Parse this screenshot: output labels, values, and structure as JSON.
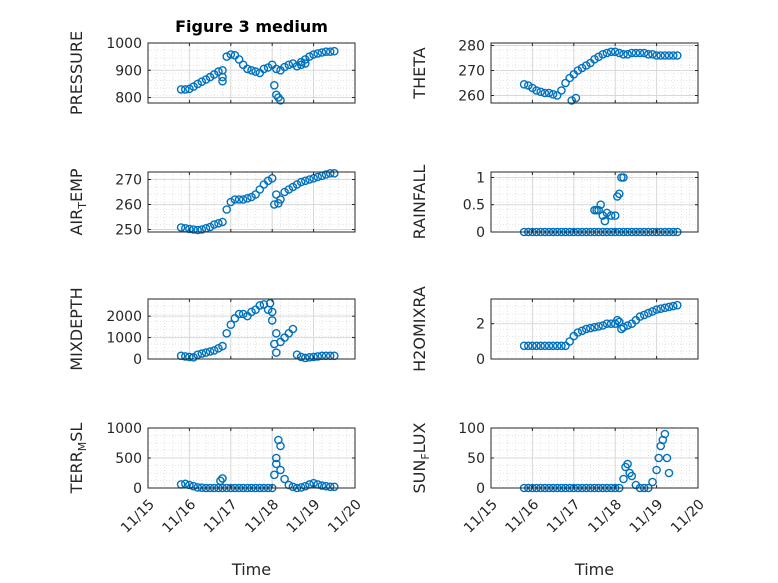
{
  "figure": {
    "title": "Figure 3 medium",
    "marker_color": "#0072BD",
    "grid": true,
    "minor_grid": true
  },
  "chart_data": [
    {
      "type": "scatter",
      "title": "Figure 3 medium",
      "ylabel": "PRESSURE",
      "xlim": [
        0,
        5
      ],
      "ylim": [
        780,
        1000
      ],
      "yticks": [
        800,
        900,
        1000
      ],
      "ytick_labels": [
        "800",
        "900",
        "1000"
      ],
      "show_xticklabels": false,
      "x": [
        0.8,
        0.9,
        1.0,
        1.1,
        1.2,
        1.3,
        1.4,
        1.5,
        1.6,
        1.7,
        1.8,
        1.9,
        2.0,
        2.1,
        2.2,
        2.3,
        2.4,
        2.5,
        2.6,
        2.7,
        2.8,
        2.9,
        3.0,
        3.1,
        3.2,
        3.3,
        3.4,
        3.5,
        3.6,
        3.7,
        3.8,
        3.9,
        4.0,
        4.1,
        4.2,
        4.3,
        4.4,
        4.5,
        1.8,
        1.8,
        3.05,
        3.1,
        3.15,
        3.2,
        3.7,
        3.8
      ],
      "y": [
        830,
        830,
        832,
        840,
        850,
        858,
        866,
        875,
        885,
        895,
        900,
        950,
        958,
        955,
        940,
        920,
        905,
        900,
        895,
        890,
        905,
        910,
        920,
        905,
        900,
        912,
        920,
        925,
        915,
        930,
        940,
        950,
        958,
        962,
        965,
        968,
        968,
        970,
        860,
        875,
        845,
        810,
        800,
        790,
        920,
        925
      ]
    },
    {
      "type": "scatter",
      "ylabel": "THETA",
      "xlim": [
        0,
        5
      ],
      "ylim": [
        257,
        281
      ],
      "yticks": [
        260,
        270,
        280
      ],
      "ytick_labels": [
        "260",
        "270",
        "280"
      ],
      "show_xticklabels": false,
      "x": [
        0.8,
        0.9,
        1.0,
        1.1,
        1.2,
        1.3,
        1.4,
        1.5,
        1.6,
        1.7,
        1.8,
        1.9,
        2.0,
        2.1,
        2.2,
        2.3,
        2.4,
        2.5,
        2.6,
        2.7,
        2.8,
        2.9,
        3.0,
        3.1,
        3.2,
        3.3,
        3.4,
        3.5,
        3.6,
        3.7,
        3.8,
        3.9,
        4.0,
        4.1,
        4.2,
        4.3,
        4.4,
        4.5,
        1.95,
        2.05
      ],
      "y": [
        264.5,
        264,
        263,
        262,
        261.5,
        261,
        261,
        260.5,
        260,
        262,
        265,
        267,
        268.5,
        270,
        271,
        272,
        273,
        274.5,
        275.5,
        276.5,
        277,
        277.5,
        277.5,
        277,
        276.5,
        276.5,
        277,
        277,
        277,
        277,
        276.5,
        276.5,
        276,
        276,
        276,
        276,
        276,
        276,
        258,
        259
      ]
    },
    {
      "type": "scatter",
      "ylabel": "AIR_TEMP",
      "ylabel_main": "AIR",
      "ylabel_sub": "T",
      "ylabel_rest": "EMP",
      "xlim": [
        0,
        5
      ],
      "ylim": [
        249,
        273
      ],
      "yticks": [
        250,
        260,
        270
      ],
      "ytick_labels": [
        "250",
        "260",
        "270"
      ],
      "show_xticklabels": false,
      "x": [
        0.8,
        0.9,
        1.0,
        1.1,
        1.2,
        1.3,
        1.4,
        1.5,
        1.6,
        1.7,
        1.8,
        1.9,
        2.0,
        2.1,
        2.2,
        2.3,
        2.4,
        2.5,
        2.6,
        2.7,
        2.8,
        2.9,
        3.0,
        3.1,
        3.2,
        3.3,
        3.4,
        3.5,
        3.6,
        3.7,
        3.8,
        3.9,
        4.0,
        4.1,
        4.2,
        4.3,
        4.4,
        4.5,
        3.05,
        3.15
      ],
      "y": [
        250.8,
        250.5,
        250.2,
        250,
        249.8,
        250,
        250.5,
        251,
        252,
        252.5,
        253,
        258,
        261,
        262,
        262,
        262,
        262.5,
        263,
        264,
        266,
        268,
        269.5,
        270.5,
        264,
        262,
        265,
        266,
        267,
        268,
        269,
        269.5,
        270,
        270.5,
        271,
        271.5,
        272,
        272.5,
        272.5,
        260,
        260.5
      ]
    },
    {
      "type": "scatter",
      "ylabel": "RAINFALL",
      "xlim": [
        0,
        5
      ],
      "ylim": [
        0,
        1.1
      ],
      "yticks": [
        0,
        0.5,
        1
      ],
      "ytick_labels": [
        "0",
        "0.5",
        "1"
      ],
      "show_xticklabels": false,
      "x": [
        0.8,
        0.9,
        1.0,
        1.1,
        1.2,
        1.3,
        1.4,
        1.5,
        1.6,
        1.7,
        1.8,
        1.9,
        2.0,
        2.1,
        2.2,
        2.3,
        2.4,
        2.5,
        2.6,
        2.7,
        2.8,
        2.9,
        3.0,
        3.1,
        3.2,
        3.3,
        3.4,
        3.5,
        3.6,
        3.7,
        3.8,
        3.9,
        4.0,
        4.1,
        4.2,
        4.3,
        4.4,
        4.5,
        2.5,
        2.55,
        2.6,
        2.65,
        2.7,
        2.75,
        2.8,
        2.9,
        3.0,
        3.05,
        3.1,
        3.15,
        3.2
      ],
      "y": [
        0,
        0,
        0,
        0,
        0,
        0,
        0,
        0,
        0,
        0,
        0,
        0,
        0,
        0,
        0,
        0,
        0,
        0,
        0,
        0,
        0,
        0,
        0,
        0,
        0,
        0,
        0,
        0,
        0,
        0,
        0,
        0,
        0,
        0,
        0,
        0,
        0,
        0,
        0.4,
        0.4,
        0.4,
        0.5,
        0.3,
        0.2,
        0.35,
        0.3,
        0.3,
        0.65,
        0.7,
        1.0,
        1.0
      ]
    },
    {
      "type": "scatter",
      "ylabel": "MIXDEPTH",
      "xlim": [
        0,
        5
      ],
      "ylim": [
        0,
        2800
      ],
      "yticks": [
        0,
        1000,
        2000
      ],
      "ytick_labels": [
        "0",
        "1000",
        "2000"
      ],
      "show_xticklabels": false,
      "x": [
        0.8,
        0.9,
        1.0,
        1.1,
        1.2,
        1.3,
        1.4,
        1.5,
        1.6,
        1.7,
        1.8,
        1.9,
        2.0,
        2.1,
        2.2,
        2.3,
        2.4,
        2.5,
        2.6,
        2.7,
        2.8,
        2.9,
        3.0,
        3.1,
        3.2,
        3.3,
        3.4,
        3.5,
        3.6,
        3.7,
        3.8,
        3.9,
        4.0,
        4.1,
        4.2,
        4.3,
        4.4,
        4.5,
        2.95,
        3.0,
        3.05,
        3.1
      ],
      "y": [
        150,
        120,
        100,
        80,
        200,
        250,
        300,
        350,
        400,
        500,
        600,
        1200,
        1600,
        1900,
        2100,
        2100,
        2000,
        2200,
        2300,
        2500,
        2550,
        2300,
        1800,
        1200,
        800,
        1000,
        1200,
        1400,
        200,
        100,
        50,
        80,
        100,
        120,
        150,
        150,
        150,
        150,
        2600,
        2200,
        700,
        300
      ]
    },
    {
      "type": "scatter",
      "ylabel": "H2OMIXRA",
      "xlim": [
        0,
        5
      ],
      "ylim": [
        0,
        3.4
      ],
      "yticks": [
        0,
        2
      ],
      "ytick_labels": [
        "0",
        "2"
      ],
      "show_xticklabels": false,
      "x": [
        0.8,
        0.9,
        1.0,
        1.1,
        1.2,
        1.3,
        1.4,
        1.5,
        1.6,
        1.7,
        1.8,
        1.9,
        2.0,
        2.1,
        2.2,
        2.3,
        2.4,
        2.5,
        2.6,
        2.7,
        2.8,
        2.9,
        3.0,
        3.1,
        3.2,
        3.3,
        3.4,
        3.5,
        3.6,
        3.7,
        3.8,
        3.9,
        4.0,
        4.1,
        4.2,
        4.3,
        4.4,
        4.5,
        3.05,
        3.15
      ],
      "y": [
        0.75,
        0.75,
        0.75,
        0.75,
        0.75,
        0.75,
        0.75,
        0.75,
        0.75,
        0.75,
        0.75,
        1.0,
        1.3,
        1.5,
        1.6,
        1.7,
        1.75,
        1.8,
        1.85,
        1.9,
        2.0,
        2.0,
        2.0,
        2.1,
        1.8,
        1.9,
        2.0,
        2.2,
        2.4,
        2.5,
        2.6,
        2.7,
        2.8,
        2.85,
        2.9,
        2.95,
        3.0,
        3.05,
        2.2,
        1.7
      ]
    },
    {
      "type": "scatter",
      "ylabel": "TERR_MSL",
      "ylabel_main": "TERR",
      "ylabel_sub": "M",
      "ylabel_rest": "SL",
      "xlim": [
        0,
        5
      ],
      "ylim": [
        0,
        1000
      ],
      "yticks": [
        0,
        500,
        1000
      ],
      "ytick_labels": [
        "0",
        "500",
        "1000"
      ],
      "xticks": [
        0,
        1,
        2,
        3,
        4,
        5
      ],
      "xtick_labels": [
        "11/15",
        "11/16",
        "11/17",
        "11/18",
        "11/19",
        "11/20"
      ],
      "xlabel": "Time",
      "x": [
        0.8,
        0.9,
        1.0,
        1.1,
        1.2,
        1.3,
        1.4,
        1.5,
        1.6,
        1.7,
        1.8,
        1.9,
        2.0,
        2.1,
        2.2,
        2.3,
        2.4,
        2.5,
        2.6,
        2.7,
        2.8,
        2.9,
        3.0,
        3.1,
        3.2,
        3.3,
        3.4,
        3.5,
        3.6,
        3.7,
        3.8,
        3.9,
        4.0,
        4.1,
        4.2,
        4.3,
        4.4,
        4.5,
        1.75,
        1.8,
        3.05,
        3.1,
        3.15,
        3.2
      ],
      "y": [
        60,
        70,
        50,
        30,
        10,
        5,
        0,
        0,
        0,
        0,
        0,
        0,
        0,
        0,
        0,
        0,
        0,
        0,
        0,
        0,
        0,
        0,
        0,
        400,
        300,
        150,
        50,
        20,
        0,
        10,
        30,
        60,
        80,
        60,
        40,
        30,
        20,
        20,
        120,
        160,
        220,
        500,
        800,
        700
      ]
    },
    {
      "type": "scatter",
      "ylabel": "SUN_FLUX",
      "ylabel_main": "SUN",
      "ylabel_sub": "F",
      "ylabel_rest": "LUX",
      "xlim": [
        0,
        5
      ],
      "ylim": [
        0,
        100
      ],
      "yticks": [
        0,
        50,
        100
      ],
      "ytick_labels": [
        "0",
        "50",
        "100"
      ],
      "xticks": [
        0,
        1,
        2,
        3,
        4,
        5
      ],
      "xtick_labels": [
        "11/15",
        "11/16",
        "11/17",
        "11/18",
        "11/19",
        "11/20"
      ],
      "xlabel": "Time",
      "x": [
        0.8,
        0.9,
        1.0,
        1.1,
        1.2,
        1.3,
        1.4,
        1.5,
        1.6,
        1.7,
        1.8,
        1.9,
        2.0,
        2.1,
        2.2,
        2.3,
        2.4,
        2.5,
        2.6,
        2.7,
        2.8,
        2.9,
        3.0,
        3.1,
        3.2,
        3.25,
        3.3,
        3.35,
        3.4,
        3.5,
        3.6,
        3.7,
        3.8,
        3.9,
        4.0,
        4.05,
        4.1,
        4.15,
        4.2,
        4.25,
        4.3
      ],
      "y": [
        0,
        0,
        0,
        0,
        0,
        0,
        0,
        0,
        0,
        0,
        0,
        0,
        0,
        0,
        0,
        0,
        0,
        0,
        0,
        0,
        0,
        0,
        0,
        0,
        15,
        35,
        40,
        25,
        20,
        5,
        0,
        0,
        0,
        10,
        30,
        50,
        70,
        80,
        90,
        50,
        25
      ]
    }
  ]
}
